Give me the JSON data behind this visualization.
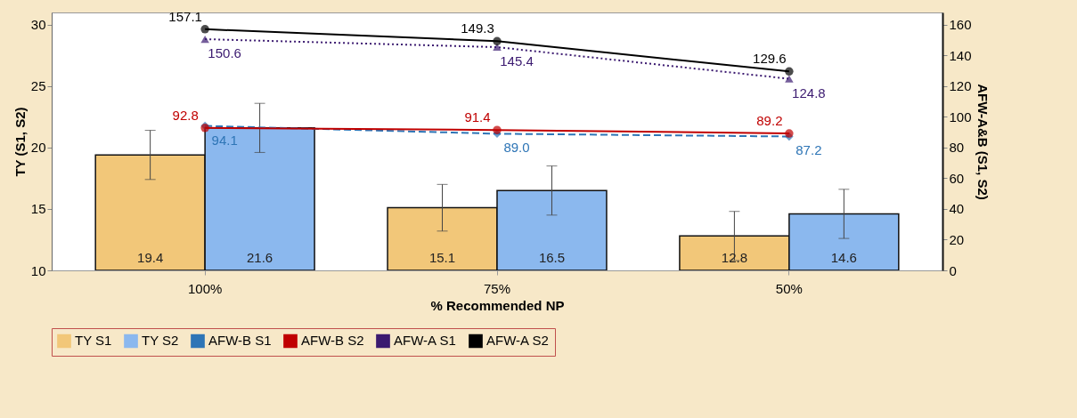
{
  "chart_data": {
    "type": "bar",
    "xlabel": "% Recommended NP",
    "ylabel": "TY (S1, S2)",
    "y2label": "AFW-A&B (S1, S2)",
    "categories": [
      "100%",
      "75%",
      "50%"
    ],
    "series": [
      {
        "name": "TY S1",
        "type": "bar",
        "color": "#f2c779",
        "values": [
          19.4,
          15.1,
          12.8
        ],
        "errors": [
          2.0,
          1.9,
          2.0
        ]
      },
      {
        "name": "TY S2",
        "type": "bar",
        "color": "#8bb8ee",
        "values": [
          21.6,
          16.5,
          14.6
        ],
        "errors": [
          2.0,
          2.0,
          2.0
        ]
      },
      {
        "name": "AFW-B S1",
        "type": "line",
        "axis": "y2",
        "color": "#2e75b6",
        "line_style": "dashed",
        "marker": "diamond",
        "values": [
          94.1,
          89.0,
          87.2
        ],
        "value_labels": [
          "94.1",
          "89.0",
          "87.2"
        ]
      },
      {
        "name": "AFW-B S2",
        "type": "line",
        "axis": "y2",
        "color": "#c00000",
        "line_style": "solid",
        "marker": "circle",
        "values": [
          92.8,
          91.4,
          89.2
        ],
        "value_labels": [
          "92.8",
          "91.4",
          "89.2"
        ]
      },
      {
        "name": "AFW-A S1",
        "type": "line",
        "axis": "y2",
        "color": "#3b1a70",
        "line_style": "dotted",
        "marker": "triangle",
        "values": [
          150.6,
          145.4,
          124.8
        ],
        "value_labels": [
          "150.6",
          "145.4",
          "124.8"
        ]
      },
      {
        "name": "AFW-A S2",
        "type": "line",
        "axis": "y2",
        "color": "#000000",
        "line_style": "solid",
        "marker": "circle",
        "values": [
          157.1,
          149.3,
          129.6
        ],
        "value_labels": [
          "157.1",
          "149.3",
          "129.6"
        ]
      }
    ],
    "ylim": [
      10,
      31
    ],
    "yticks": [
      10,
      15,
      20,
      25,
      30
    ],
    "y2lim": [
      0,
      168
    ],
    "y2ticks": [
      0,
      20,
      40,
      60,
      80,
      100,
      120,
      140,
      160
    ],
    "data_labels": true,
    "grid": false,
    "legend": "bottom"
  }
}
